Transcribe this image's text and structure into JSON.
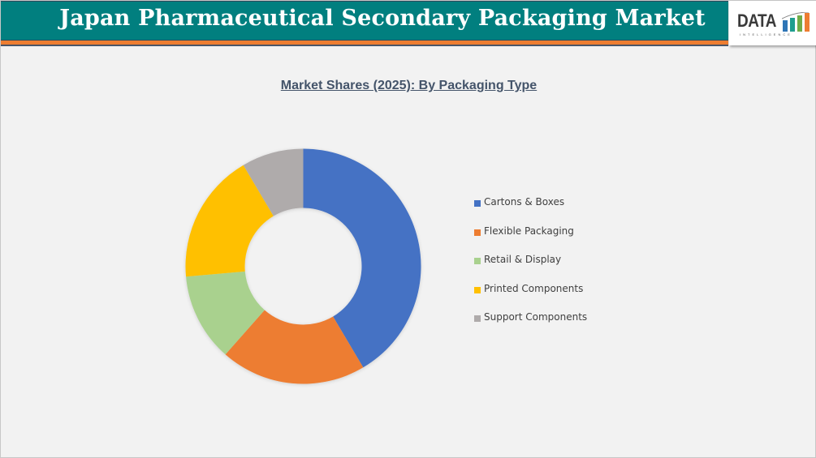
{
  "header": {
    "title": "Japan Pharmaceutical Secondary Packaging Market",
    "logo_text": "DATA",
    "logo_subtext": "INTELLIGENCE"
  },
  "colors": {
    "header_bg": "#017f7f",
    "header_accent": "#ed7d31",
    "title_text": "#44546a"
  },
  "chart_data": {
    "type": "pie",
    "variant": "donut",
    "title": "Market Shares (2025): By Packaging Type",
    "categories": [
      "Cartons & Boxes",
      "Flexible Packaging",
      "Retail & Display",
      "Printed Components",
      "Support Components"
    ],
    "values": [
      41.5,
      20.0,
      12.1,
      17.9,
      8.5
    ],
    "unit": "%",
    "colors": [
      "#4472c4",
      "#ed7d31",
      "#a9d18e",
      "#ffc000",
      "#afabab"
    ],
    "legend_position": "right",
    "data_labels": false
  },
  "legend": {
    "items": [
      {
        "label": "Cartons & Boxes",
        "color": "#4472c4"
      },
      {
        "label": "Flexible Packaging",
        "color": "#ed7d31"
      },
      {
        "label": "Retail & Display",
        "color": "#a9d18e"
      },
      {
        "label": "Printed Components",
        "color": "#ffc000"
      },
      {
        "label": "Support Components",
        "color": "#afabab"
      }
    ]
  }
}
